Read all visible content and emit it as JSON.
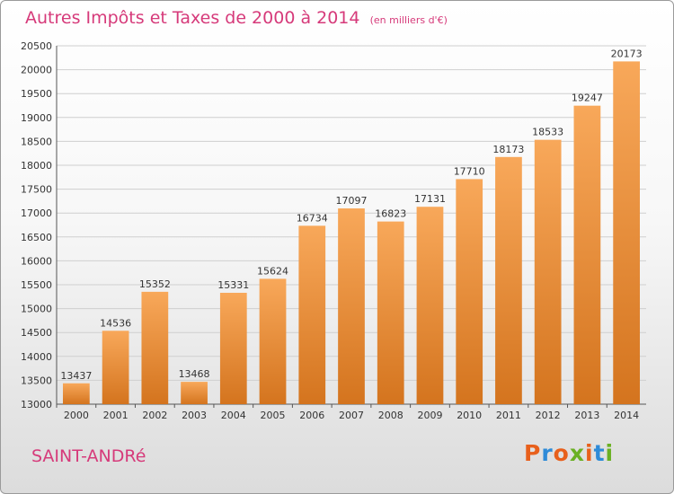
{
  "title": "Autres Impôts et Taxes de 2000 à 2014",
  "subtitle": "(en milliers d'€)",
  "commune": "SAINT-ANDRé",
  "logo": {
    "text": "Proxiti",
    "colors": [
      "#e8601c",
      "#2e8bd8",
      "#e8601c",
      "#6ab023",
      "#e8601c",
      "#2e8bd8",
      "#6ab023"
    ]
  },
  "colors": {
    "bar_light": "#f8a85a",
    "bar_dark": "#d4741e",
    "title": "#d63a7a"
  },
  "chart_data": {
    "type": "bar",
    "title": "Autres Impôts et Taxes de 2000 à 2014",
    "xlabel": "",
    "ylabel": "",
    "categories": [
      "2000",
      "2001",
      "2002",
      "2003",
      "2004",
      "2005",
      "2006",
      "2007",
      "2008",
      "2009",
      "2010",
      "2011",
      "2012",
      "2013",
      "2014"
    ],
    "values": [
      13437,
      14536,
      15352,
      13468,
      15331,
      15624,
      16734,
      17097,
      16823,
      17131,
      17710,
      18173,
      18533,
      19247,
      20173
    ],
    "ylim": [
      13000,
      20500
    ],
    "yticks": [
      13000,
      13500,
      14000,
      14500,
      15000,
      15500,
      16000,
      16500,
      17000,
      17500,
      18000,
      18500,
      19000,
      19500,
      20000,
      20500
    ],
    "grid": true,
    "legend": "none"
  }
}
